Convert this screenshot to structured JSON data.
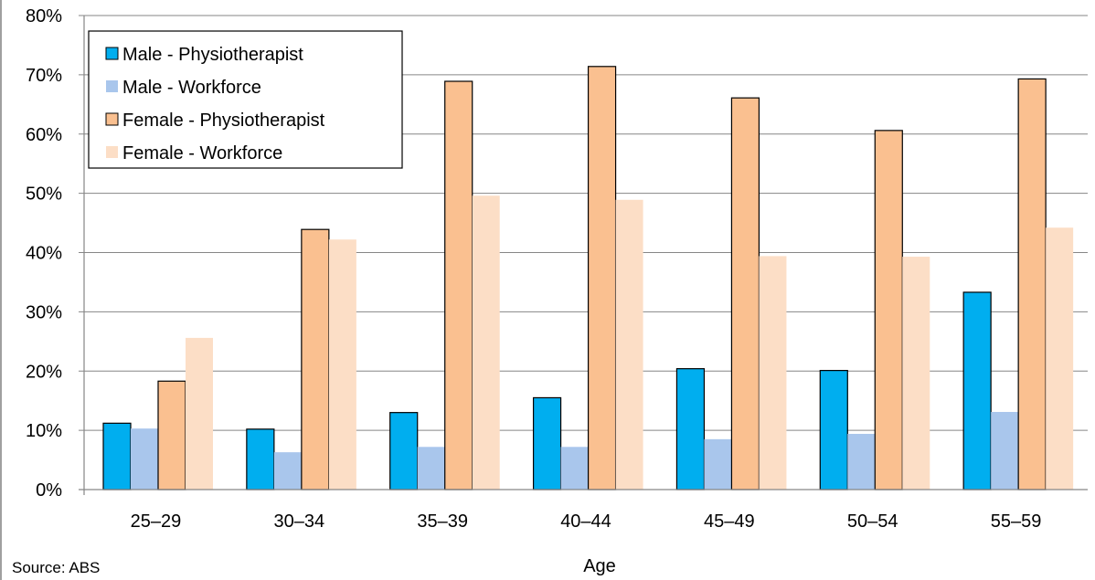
{
  "chart_data": {
    "type": "bar",
    "xlabel": "Age",
    "ylabel": "",
    "ylim": [
      0,
      80
    ],
    "y_tick_step": 10,
    "y_tick_format": "percent",
    "grid": "horizontal",
    "legend_position": "top-left",
    "categories": [
      "25–29",
      "30–34",
      "35–39",
      "40–44",
      "45–49",
      "50–54",
      "55–59"
    ],
    "series": [
      {
        "name": "Male - Physiotherapist",
        "color": "#00AEEF",
        "outlined": true,
        "values": [
          11.2,
          10.2,
          13.0,
          15.5,
          20.4,
          20.1,
          33.3
        ]
      },
      {
        "name": "Male - Workforce",
        "color": "#A9C6EC",
        "outlined": false,
        "values": [
          10.3,
          6.3,
          7.2,
          7.2,
          8.5,
          9.4,
          13.1
        ]
      },
      {
        "name": "Female - Physiotherapist",
        "color": "#FAC090",
        "outlined": true,
        "values": [
          18.3,
          43.9,
          68.9,
          71.4,
          66.1,
          60.6,
          69.3
        ]
      },
      {
        "name": "Female - Workforce",
        "color": "#FCDEC6",
        "outlined": false,
        "values": [
          25.6,
          42.2,
          49.6,
          48.9,
          39.4,
          39.3,
          44.2
        ]
      }
    ],
    "source": "Source: ABS"
  }
}
